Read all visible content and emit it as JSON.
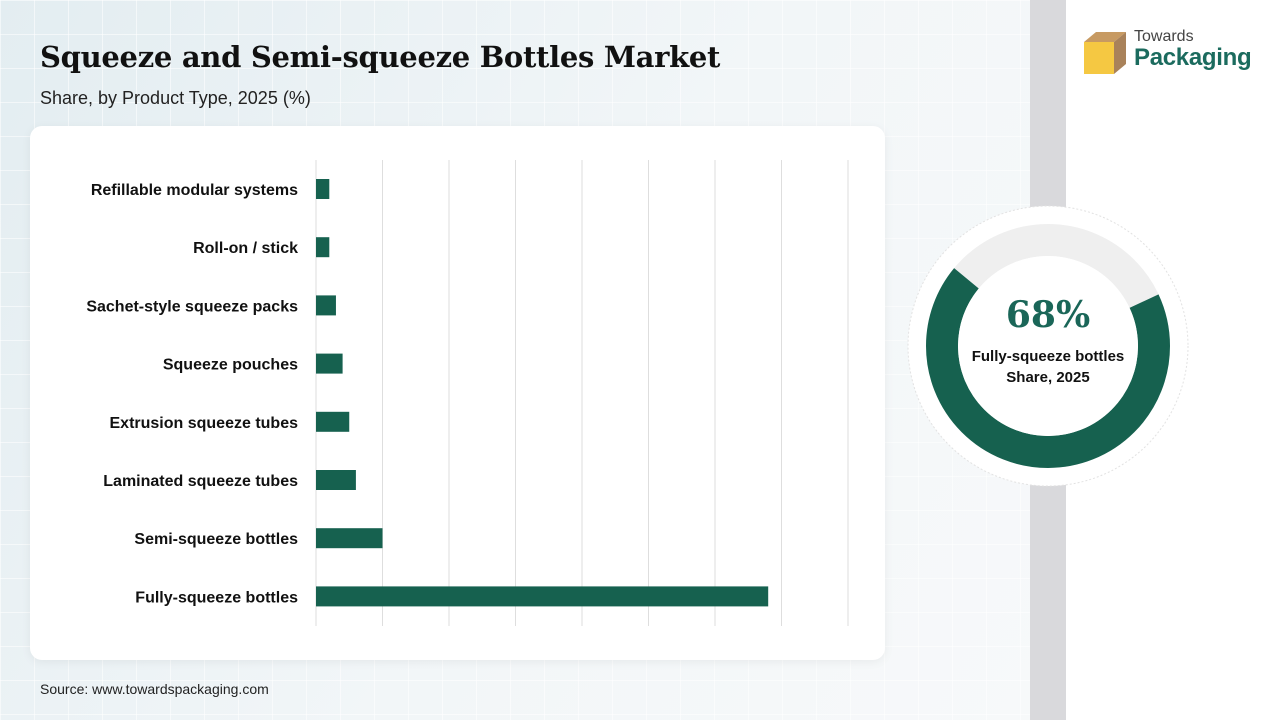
{
  "header": {
    "title": "Squeeze and Semi-squeeze Bottles Market",
    "subtitle": "Share, by Product Type, 2025 (%)"
  },
  "brand": {
    "top": "Towards",
    "bottom": "Packaging",
    "colors": {
      "primary": "#1b6b5e",
      "accent": "#f5c842",
      "box_side": "#a9825a"
    }
  },
  "highlight": {
    "value": "68%",
    "label": "Fully-squeeze bottles Share, 2025",
    "share": 0.68,
    "color": "#16614f",
    "track_color": "#efefef"
  },
  "source": "Source: www.towardspackaging.com",
  "chart_data": {
    "type": "bar",
    "orientation": "horizontal",
    "categories": [
      "Refillable modular systems",
      "Roll-on / stick",
      "Sachet-style squeeze packs",
      "Squeeze pouches",
      "Extrusion squeeze tubes",
      "Laminated squeeze tubes",
      "Semi-squeeze bottles",
      "Fully-squeeze bottles"
    ],
    "values": [
      2,
      2,
      3,
      4,
      5,
      6,
      10,
      68
    ],
    "xlim": [
      0,
      80
    ],
    "grid": true,
    "bar_color": "#16614f",
    "title": "",
    "xlabel": "",
    "ylabel": ""
  }
}
